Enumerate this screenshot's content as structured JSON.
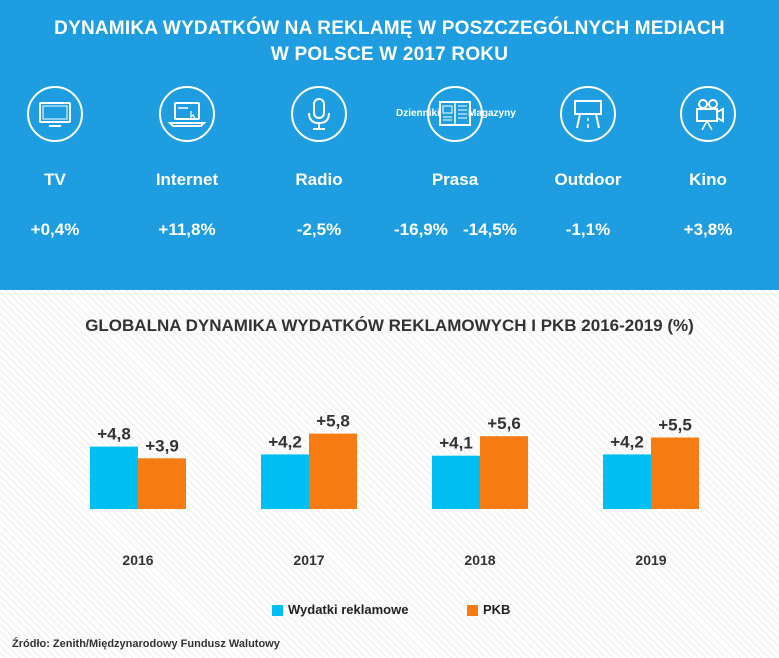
{
  "header": {
    "title_line1": "DYNAMIKA WYDATKÓW NA REKLAMĘ W POSZCZEGÓLNYCH MEDIACH",
    "title_line2": "W POLSCE W 2017 ROKU"
  },
  "media": {
    "tv": {
      "name": "TV",
      "value": "+0,4%",
      "icon": "tv-icon"
    },
    "internet": {
      "name": "Internet",
      "value": "+11,8%",
      "icon": "laptop-icon"
    },
    "radio": {
      "name": "Radio",
      "value": "-2,5%",
      "icon": "microphone-icon"
    },
    "prasa": {
      "name": "Prasa",
      "icon": "newspaper-icon",
      "dzienniki_label": "Dzienniki",
      "dzienniki_value": "-16,9%",
      "magazyny_label": "Magazyny",
      "magazyny_value": "-14,5%"
    },
    "outdoor": {
      "name": "Outdoor",
      "value": "-1,1%",
      "icon": "billboard-icon"
    },
    "kino": {
      "name": "Kino",
      "value": "+3,8%",
      "icon": "movie-camera-icon"
    }
  },
  "colors": {
    "header_bg": "#1e9ee0",
    "wydatki": "#00c0f3",
    "pkb": "#f47c12"
  },
  "chart_data": {
    "type": "bar",
    "title": "GLOBALNA DYNAMIKA WYDATKÓW REKLAMOWYCH I PKB 2016-2019 (%)",
    "categories": [
      "2016",
      "2017",
      "2018",
      "2019"
    ],
    "series": [
      {
        "name": "Wydatki reklamowe",
        "values": [
          4.8,
          4.2,
          4.1,
          4.2
        ],
        "labels": [
          "+4,8",
          "+4,2",
          "+4,1",
          "+4,2"
        ]
      },
      {
        "name": "PKB",
        "values": [
          3.9,
          5.8,
          5.6,
          5.5
        ],
        "labels": [
          "+3,9",
          "+5,8",
          "+5,6",
          "+5,5"
        ]
      }
    ],
    "ylim": [
      0,
      6.5
    ],
    "grid": false,
    "legend": "bottom"
  },
  "source": "Źródło: Zenith/Międzynarodowy Fundusz Walutowy"
}
